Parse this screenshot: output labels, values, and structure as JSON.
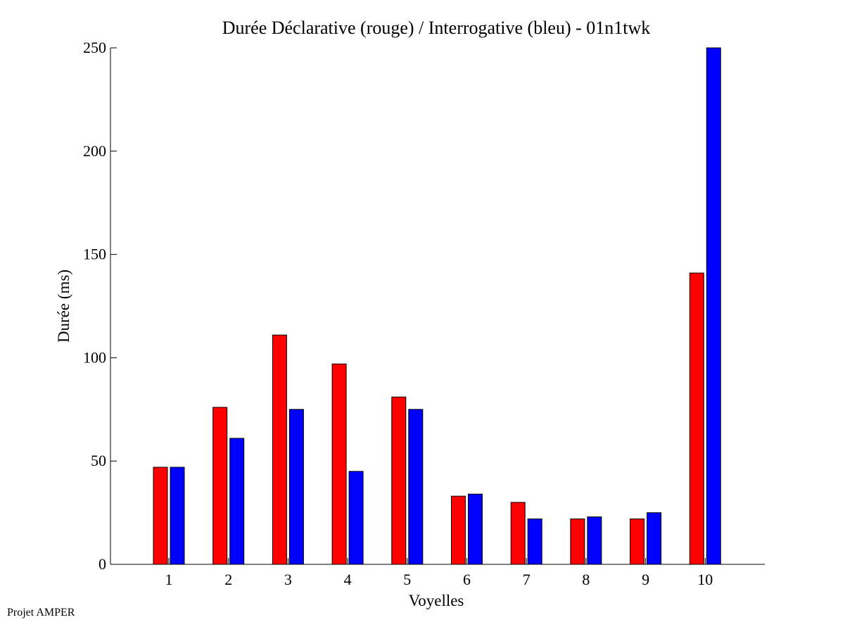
{
  "chart_data": {
    "type": "bar",
    "title": "Durée Déclarative (rouge) / Interrogative (bleu) - 01n1twk",
    "xlabel": "Voyelles",
    "ylabel": "Durée (ms)",
    "categories": [
      "1",
      "2",
      "3",
      "4",
      "5",
      "6",
      "7",
      "8",
      "9",
      "10"
    ],
    "series": [
      {
        "values": [
          47,
          76,
          111,
          97,
          81,
          33,
          30,
          22,
          22,
          141
        ],
        "color": "#ff0000"
      },
      {
        "values": [
          47,
          61,
          75,
          45,
          75,
          34,
          22,
          23,
          25,
          250
        ],
        "color": "#0000ff"
      }
    ],
    "ylim": [
      0,
      250
    ],
    "yticks": [
      "0",
      "50",
      "100",
      "150",
      "200",
      "250"
    ],
    "grid": false,
    "legend": "none"
  },
  "footer": "Projet AMPER"
}
